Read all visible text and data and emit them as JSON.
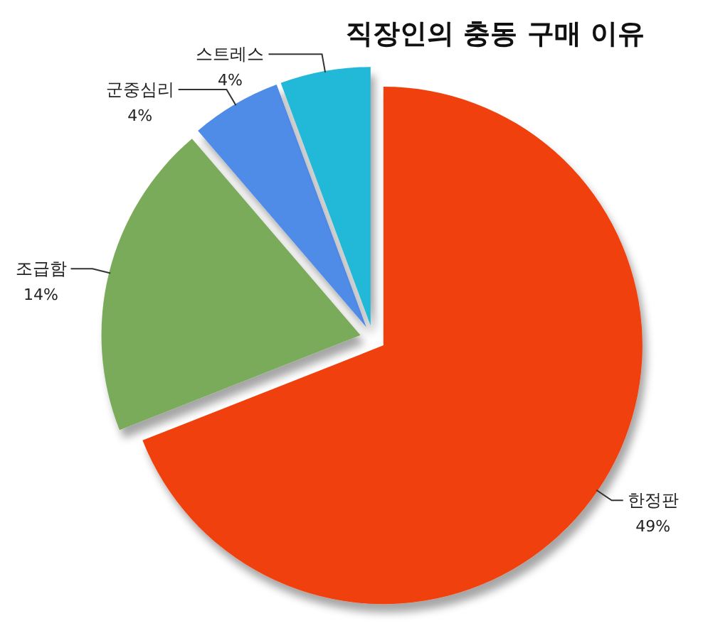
{
  "chart_data": {
    "type": "pie",
    "title": "직장인의 충동 구매 이유",
    "categories": [
      "한정판",
      "조급함",
      "군중심리",
      "스트레스"
    ],
    "values": [
      49,
      14,
      4,
      4
    ],
    "value_labels": [
      "49%",
      "14%",
      "4%",
      "4%"
    ],
    "colors": [
      "#f0400c",
      "#7aab5a",
      "#4f8ce8",
      "#22b8d8"
    ]
  }
}
